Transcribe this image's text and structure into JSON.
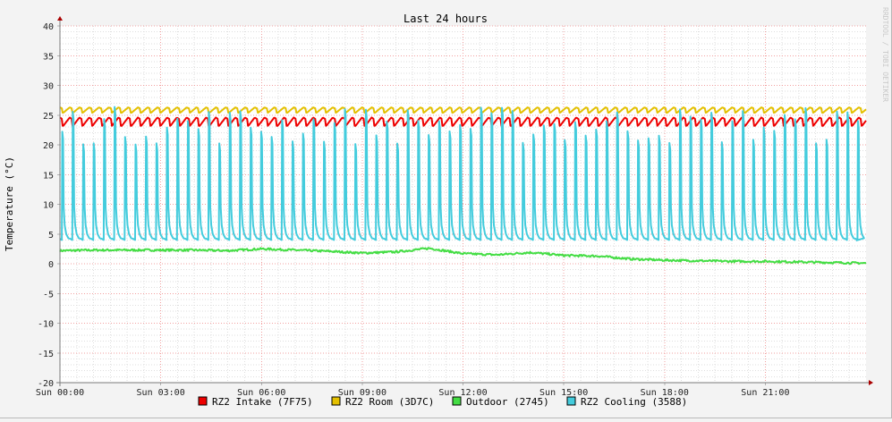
{
  "chart_data": {
    "type": "line",
    "title": "Last 24 hours",
    "xlabel": "",
    "ylabel": "Temperature (°C)",
    "watermark": "RRDTOOL / TOBI OETIKER",
    "ylim": [
      -20,
      40
    ],
    "yticks": [
      40,
      35,
      30,
      25,
      20,
      15,
      10,
      5,
      0,
      -5,
      -10,
      -15,
      -20
    ],
    "xlim_hours": [
      0,
      24
    ],
    "xticks": [
      {
        "label": "Sun 00:00",
        "hour": 0
      },
      {
        "label": "Sun 03:00",
        "hour": 3
      },
      {
        "label": "Sun 06:00",
        "hour": 6
      },
      {
        "label": "Sun 09:00",
        "hour": 9
      },
      {
        "label": "Sun 12:00",
        "hour": 12
      },
      {
        "label": "Sun 15:00",
        "hour": 15
      },
      {
        "label": "Sun 18:00",
        "hour": 18
      },
      {
        "label": "Sun 21:00",
        "hour": 21
      }
    ],
    "grid": true,
    "legend_position": "bottom",
    "series": [
      {
        "name": "RZ2 Intake (7F75)",
        "color": "#ee0000",
        "pattern": {
          "kind": "sawtooth",
          "min": 23.2,
          "max": 24.6,
          "period_hours": 0.29
        },
        "values_hourly": [
          23.9,
          23.9,
          23.9,
          23.9,
          23.9,
          23.9,
          23.9,
          23.9,
          23.9,
          23.9,
          23.9,
          23.9,
          23.9,
          23.9,
          23.9,
          23.9,
          23.9,
          23.9,
          23.9,
          23.9,
          23.9,
          23.9,
          23.9,
          23.9,
          23.9
        ]
      },
      {
        "name": "RZ2 Room (3D7C)",
        "color": "#e4c000",
        "pattern": {
          "kind": "sawtooth",
          "min": 25.4,
          "max": 26.3,
          "period_hours": 0.29
        },
        "values_hourly": [
          25.9,
          25.9,
          25.9,
          25.9,
          25.9,
          25.9,
          25.9,
          25.9,
          25.9,
          25.9,
          25.9,
          25.9,
          25.9,
          25.9,
          25.9,
          25.9,
          25.9,
          25.9,
          25.9,
          25.9,
          25.9,
          25.9,
          25.9,
          25.9,
          25.9
        ]
      },
      {
        "name": "Outdoor (2745)",
        "color": "#44dd44",
        "values_hourly": [
          2.2,
          2.3,
          2.3,
          2.3,
          2.3,
          2.2,
          2.5,
          2.3,
          2.1,
          1.8,
          2.0,
          2.6,
          1.7,
          1.5,
          1.9,
          1.4,
          1.3,
          0.8,
          0.6,
          0.5,
          0.4,
          0.4,
          0.3,
          0.2,
          0.1
        ]
      },
      {
        "name": "RZ2 Cooling (3588)",
        "color": "#44ccdd",
        "pattern": {
          "kind": "spikes",
          "baseline": 3.9,
          "peak_min": 20.0,
          "peak_max": 26.5,
          "count": 77
        },
        "values_hourly": [
          3.9,
          3.9,
          3.9,
          3.9,
          3.9,
          3.9,
          3.9,
          3.9,
          3.9,
          3.9,
          3.9,
          3.9,
          3.9,
          3.9,
          3.9,
          3.9,
          3.9,
          3.9,
          3.9,
          3.9,
          3.9,
          3.9,
          3.9,
          3.9,
          3.9
        ]
      }
    ]
  }
}
